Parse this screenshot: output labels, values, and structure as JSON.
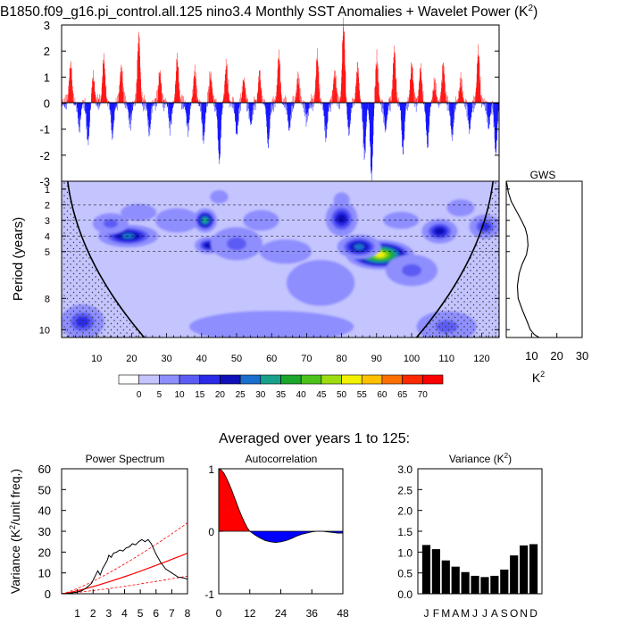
{
  "title": "B1850.f09_g16.pi_control.all.125 nino3.4 Monthly SST Anomalies + Wavelet Power (K",
  "title_sup": "2",
  "title_close": ")",
  "averaged_title": "Averaged over years 1 to 125:",
  "colors": {
    "positive": "#ff0000",
    "negative": "#0000ff",
    "bar": "#000000"
  },
  "chart_data": [
    {
      "type": "bar",
      "name": "anomaly",
      "xlim": [
        0,
        125
      ],
      "ylim": [
        -3,
        3
      ],
      "y_ticks": [
        -3,
        -2,
        -1,
        0,
        1,
        2,
        3
      ],
      "events": [
        {
          "t": 2.5,
          "v": 1.5
        },
        {
          "t": 5,
          "v": -0.9
        },
        {
          "t": 7.5,
          "v": -1.5
        },
        {
          "t": 9,
          "v": 1.0
        },
        {
          "t": 12,
          "v": 1.7
        },
        {
          "t": 14.5,
          "v": -1.2
        },
        {
          "t": 17,
          "v": 1.4
        },
        {
          "t": 19.5,
          "v": -0.8
        },
        {
          "t": 22,
          "v": 2.6
        },
        {
          "t": 25,
          "v": -1.1
        },
        {
          "t": 28,
          "v": 1.2
        },
        {
          "t": 31,
          "v": -0.9
        },
        {
          "t": 33,
          "v": 1.7
        },
        {
          "t": 36,
          "v": -1.0
        },
        {
          "t": 38,
          "v": 1.2
        },
        {
          "t": 40.5,
          "v": -1.4
        },
        {
          "t": 42.5,
          "v": 1.1
        },
        {
          "t": 45,
          "v": -2.2
        },
        {
          "t": 47,
          "v": 1.5
        },
        {
          "t": 50,
          "v": -1.2
        },
        {
          "t": 52,
          "v": 0.9
        },
        {
          "t": 54,
          "v": -0.8
        },
        {
          "t": 56.5,
          "v": 1.1
        },
        {
          "t": 59,
          "v": -1.6
        },
        {
          "t": 62,
          "v": 1.8
        },
        {
          "t": 65,
          "v": -1.0
        },
        {
          "t": 67.5,
          "v": 1.0
        },
        {
          "t": 70,
          "v": -0.6
        },
        {
          "t": 73,
          "v": 1.8
        },
        {
          "t": 75.5,
          "v": -1.3
        },
        {
          "t": 78,
          "v": 1.2
        },
        {
          "t": 80.5,
          "v": 3.0
        },
        {
          "t": 82,
          "v": -1.1
        },
        {
          "t": 84.5,
          "v": 1.4
        },
        {
          "t": 86.5,
          "v": -2.0
        },
        {
          "t": 88.5,
          "v": -2.8
        },
        {
          "t": 90,
          "v": 1.7
        },
        {
          "t": 92.5,
          "v": -1.0
        },
        {
          "t": 95,
          "v": 2.0
        },
        {
          "t": 97.5,
          "v": -1.8
        },
        {
          "t": 100,
          "v": 1.5
        },
        {
          "t": 102.5,
          "v": 1.3
        },
        {
          "t": 104.5,
          "v": -1.6
        },
        {
          "t": 106.5,
          "v": 0.8
        },
        {
          "t": 109,
          "v": 1.5
        },
        {
          "t": 111.5,
          "v": -1.3
        },
        {
          "t": 114,
          "v": 0.9
        },
        {
          "t": 116.5,
          "v": -1.0
        },
        {
          "t": 119,
          "v": 2.0
        },
        {
          "t": 122,
          "v": -0.9
        },
        {
          "t": 124,
          "v": -1.9
        }
      ]
    },
    {
      "type": "heatmap",
      "name": "wavelet_power",
      "ylabel": "Period (years)",
      "xlim": [
        0,
        125
      ],
      "x_ticks": [
        10,
        20,
        30,
        40,
        50,
        60,
        70,
        80,
        90,
        100,
        110,
        120
      ],
      "y_ticks": [
        1,
        2,
        3,
        4,
        5,
        8,
        10
      ],
      "period_range": [
        0.5,
        10.5
      ],
      "dashed_periods": [
        2,
        3,
        4,
        5
      ],
      "colorbar": {
        "labels": [
          "0",
          "5",
          "10",
          "15",
          "20",
          "25",
          "30",
          "35",
          "40",
          "45",
          "50",
          "55",
          "60",
          "65",
          "70"
        ],
        "colors": [
          "#ffffff",
          "#c4c4ff",
          "#8e8eff",
          "#5c5cf5",
          "#2a2ae8",
          "#1010b8",
          "#1a6ecc",
          "#18a08a",
          "#1ba62c",
          "#4dc21a",
          "#9cdc10",
          "#f2f200",
          "#ffc000",
          "#ff7000",
          "#ff2800",
          "#ff0000"
        ]
      },
      "blobs": [
        {
          "t": 19,
          "p": 4.0,
          "w": 7,
          "h": 0.55,
          "a": 28
        },
        {
          "t": 14,
          "p": 3.2,
          "w": 4,
          "h": 0.5,
          "a": 10
        },
        {
          "t": 6,
          "p": 9.5,
          "w": 5,
          "h": 0.9,
          "a": 18
        },
        {
          "t": 22,
          "p": 2.5,
          "w": 4,
          "h": 0.4,
          "a": 8
        },
        {
          "t": 33,
          "p": 3.0,
          "w": 5,
          "h": 0.6,
          "a": 7
        },
        {
          "t": 41,
          "p": 3.0,
          "w": 2.5,
          "h": 0.6,
          "a": 32
        },
        {
          "t": 42,
          "p": 4.6,
          "w": 3,
          "h": 0.4,
          "a": 24
        },
        {
          "t": 50,
          "p": 4.5,
          "w": 6,
          "h": 0.85,
          "a": 13
        },
        {
          "t": 45,
          "p": 1.5,
          "w": 1.8,
          "h": 0.3,
          "a": 6
        },
        {
          "t": 57,
          "p": 3.0,
          "w": 4,
          "h": 0.5,
          "a": 8
        },
        {
          "t": 64,
          "p": 5.0,
          "w": 6,
          "h": 0.6,
          "a": 8
        },
        {
          "t": 80,
          "p": 2.9,
          "w": 3.5,
          "h": 0.9,
          "a": 21
        },
        {
          "t": 80,
          "p": 1.7,
          "w": 1.5,
          "h": 0.35,
          "a": 8
        },
        {
          "t": 74,
          "p": 7.0,
          "w": 8,
          "h": 1.2,
          "a": 8
        },
        {
          "t": 91,
          "p": 5.2,
          "w": 8,
          "h": 0.75,
          "a": 52
        },
        {
          "t": 85,
          "p": 4.7,
          "w": 5,
          "h": 0.6,
          "a": 25
        },
        {
          "t": 100,
          "p": 6.2,
          "w": 6,
          "h": 0.8,
          "a": 14
        },
        {
          "t": 97,
          "p": 3.0,
          "w": 4,
          "h": 0.4,
          "a": 7
        },
        {
          "t": 108,
          "p": 3.7,
          "w": 4,
          "h": 0.6,
          "a": 20
        },
        {
          "t": 121,
          "p": 3.4,
          "w": 3.5,
          "h": 0.6,
          "a": 18
        },
        {
          "t": 114,
          "p": 2.2,
          "w": 3,
          "h": 0.4,
          "a": 7
        },
        {
          "t": 110,
          "p": 9.8,
          "w": 7,
          "h": 0.8,
          "a": 14
        },
        {
          "t": 60,
          "p": 9.8,
          "w": 20,
          "h": 0.8,
          "a": 8
        }
      ]
    },
    {
      "type": "line",
      "name": "gws",
      "title": "GWS",
      "xlabel": "K",
      "xlabel_sup": "2",
      "xlim": [
        0,
        30
      ],
      "x_ticks": [
        10,
        20,
        30
      ],
      "points": [
        [
          0.3,
          0.7
        ],
        [
          0.8,
          1.2
        ],
        [
          2,
          1.8
        ],
        [
          4,
          2.4
        ],
        [
          6,
          3.0
        ],
        [
          7.5,
          3.5
        ],
        [
          8.3,
          4.0
        ],
        [
          8.6,
          4.6
        ],
        [
          8.0,
          5.2
        ],
        [
          6.3,
          5.8
        ],
        [
          5.1,
          6.4
        ],
        [
          4.4,
          7.2
        ],
        [
          4.7,
          8.0
        ],
        [
          6.5,
          8.8
        ],
        [
          8.3,
          9.5
        ],
        [
          9.5,
          10.0
        ],
        [
          11,
          10.3
        ],
        [
          13,
          10.5
        ]
      ]
    },
    {
      "type": "line",
      "name": "power_spectrum",
      "title": "Power Spectrum",
      "ylabel": "Variance (K",
      "ylabel_sup": "2",
      "ylabel_close": "/unit freq.)",
      "xlim": [
        0,
        8
      ],
      "ylim": [
        0,
        60
      ],
      "x_ticks": [
        1,
        2,
        3,
        4,
        5,
        6,
        7,
        8
      ],
      "y_ticks": [
        0,
        10,
        20,
        30,
        40,
        50,
        60
      ],
      "spectrum": [
        [
          0.3,
          0.1
        ],
        [
          0.7,
          0.5
        ],
        [
          1.0,
          0.8
        ],
        [
          1.3,
          1.5
        ],
        [
          1.6,
          3
        ],
        [
          1.9,
          5
        ],
        [
          2.1,
          8
        ],
        [
          2.3,
          11
        ],
        [
          2.45,
          9
        ],
        [
          2.6,
          12
        ],
        [
          2.75,
          14
        ],
        [
          2.9,
          16
        ],
        [
          3.0,
          18.5
        ],
        [
          3.15,
          17.5
        ],
        [
          3.3,
          19.5
        ],
        [
          3.5,
          20
        ],
        [
          3.7,
          21
        ],
        [
          3.9,
          20.5
        ],
        [
          4.1,
          22
        ],
        [
          4.3,
          22.5
        ],
        [
          4.5,
          24
        ],
        [
          4.7,
          23.5
        ],
        [
          4.9,
          25
        ],
        [
          5.1,
          26
        ],
        [
          5.3,
          25
        ],
        [
          5.5,
          26
        ],
        [
          5.7,
          24
        ],
        [
          5.85,
          21.5
        ],
        [
          6.0,
          19
        ],
        [
          6.3,
          15
        ],
        [
          6.6,
          12
        ],
        [
          7.0,
          10
        ],
        [
          7.4,
          8
        ],
        [
          7.8,
          7.5
        ],
        [
          8.0,
          7
        ]
      ],
      "red_noise": [
        [
          0,
          0
        ],
        [
          8,
          19.5
        ]
      ],
      "ci_upper": [
        [
          0,
          0
        ],
        [
          8,
          34
        ]
      ],
      "ci_lower": [
        [
          0,
          0
        ],
        [
          8,
          8.5
        ]
      ]
    },
    {
      "type": "area",
      "name": "autocorrelation",
      "title": "Autocorrelation",
      "xlim": [
        0,
        48
      ],
      "ylim": [
        -1,
        1
      ],
      "x_ticks": [
        0,
        12,
        24,
        36,
        48
      ],
      "y_ticks": [
        -1,
        0,
        1
      ],
      "values": [
        [
          0,
          1
        ],
        [
          1,
          0.98
        ],
        [
          2,
          0.93
        ],
        [
          3,
          0.85
        ],
        [
          4,
          0.76
        ],
        [
          5,
          0.66
        ],
        [
          6,
          0.55
        ],
        [
          7,
          0.44
        ],
        [
          8,
          0.33
        ],
        [
          9,
          0.23
        ],
        [
          10,
          0.14
        ],
        [
          11,
          0.06
        ],
        [
          12,
          0.0
        ],
        [
          14,
          -0.06
        ],
        [
          16,
          -0.11
        ],
        [
          18,
          -0.15
        ],
        [
          20,
          -0.17
        ],
        [
          22,
          -0.18
        ],
        [
          24,
          -0.17
        ],
        [
          26,
          -0.15
        ],
        [
          28,
          -0.12
        ],
        [
          30,
          -0.08
        ],
        [
          32,
          -0.05
        ],
        [
          34,
          -0.03
        ],
        [
          36,
          -0.01
        ],
        [
          38,
          0.0
        ],
        [
          40,
          0.0
        ],
        [
          42,
          -0.01
        ],
        [
          44,
          -0.02
        ],
        [
          46,
          -0.03
        ],
        [
          48,
          -0.03
        ]
      ]
    },
    {
      "type": "bar",
      "name": "monthly_variance",
      "title": "Variance (K",
      "title_sup": "2",
      "title_close": ")",
      "categories": [
        "J",
        "F",
        "M",
        "A",
        "M",
        "J",
        "J",
        "A",
        "S",
        "O",
        "N",
        "D"
      ],
      "values": [
        1.17,
        1.07,
        0.8,
        0.65,
        0.52,
        0.43,
        0.4,
        0.43,
        0.58,
        0.92,
        1.16,
        1.19
      ],
      "ylim": [
        0,
        3.0
      ],
      "y_ticks": [
        "0.0",
        "0.5",
        "1.0",
        "1.5",
        "2.0",
        "2.5",
        "3.0"
      ]
    }
  ]
}
